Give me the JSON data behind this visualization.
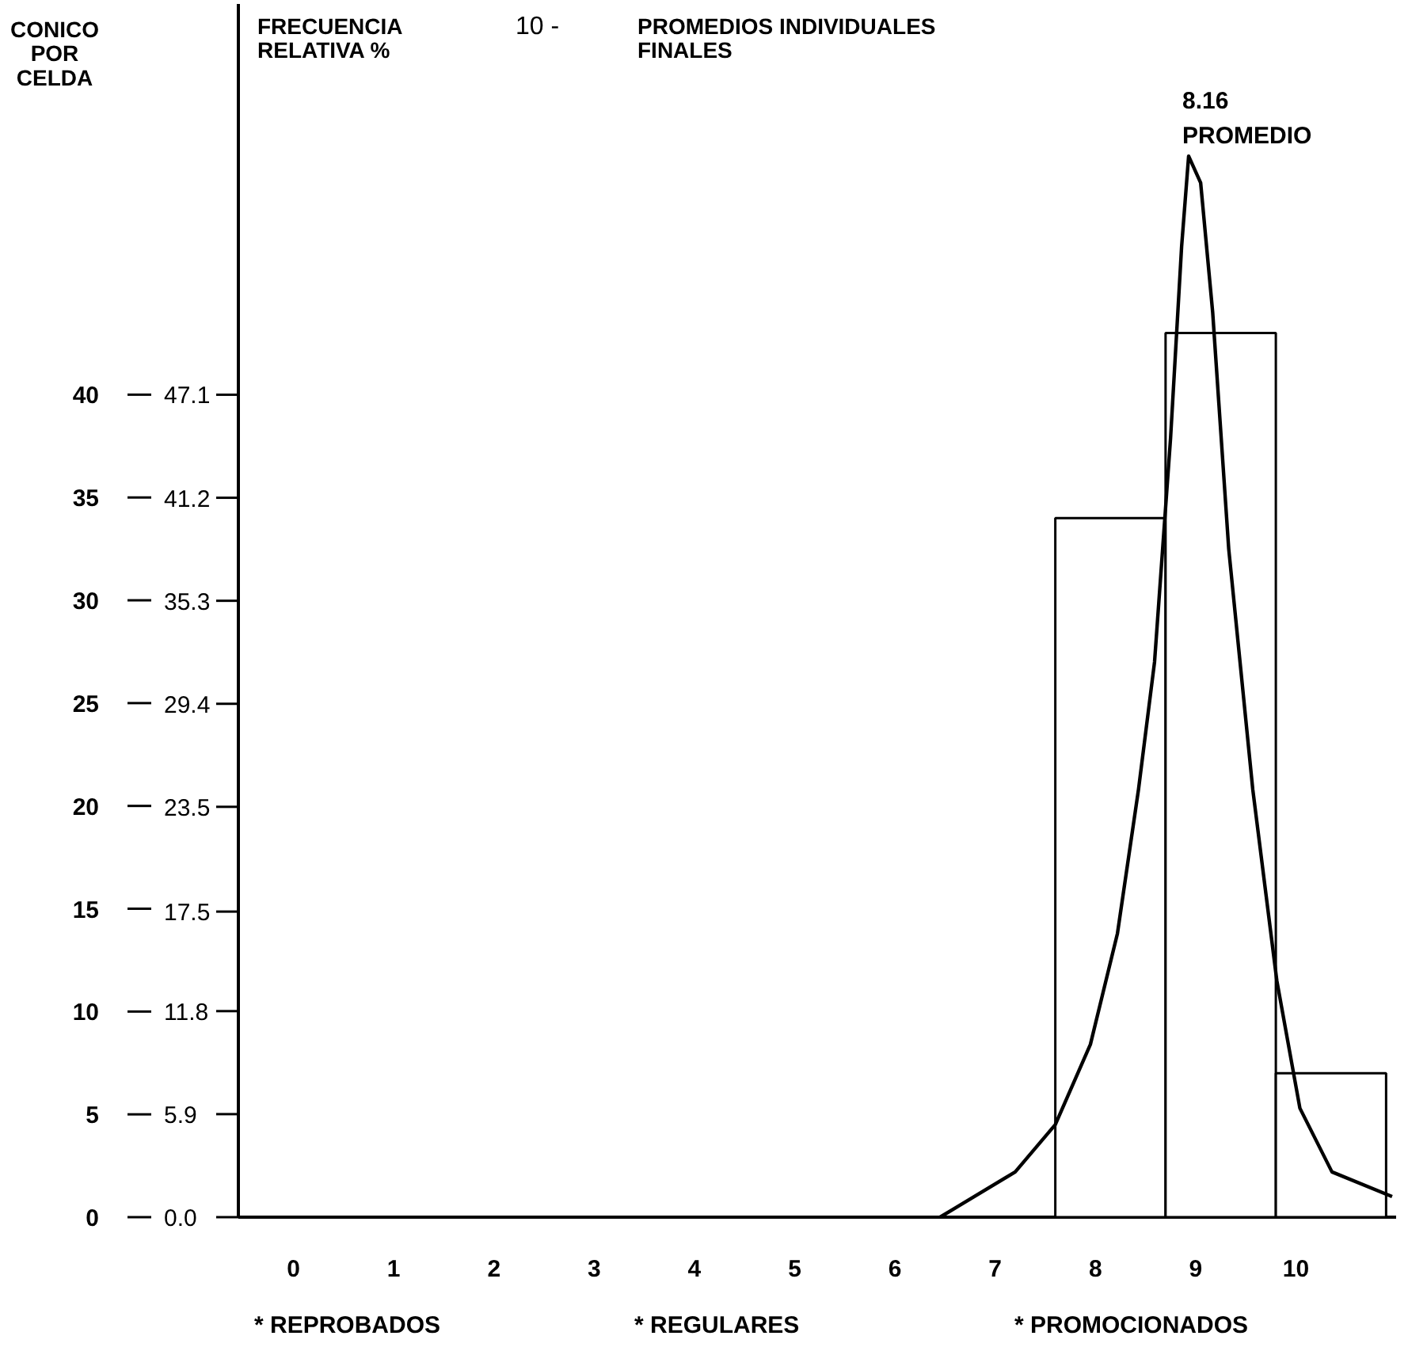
{
  "chart_data": {
    "type": "histogram",
    "title": "10 - PROMEDIOS INDIVIDUALES FINALES",
    "ylabel": "CONICO POR CELDA",
    "y2label": "FRECUENCIA RELATIVA %",
    "bins": [
      7.6,
      8.7,
      9.8,
      10.9
    ],
    "values": [
      34,
      43,
      7
    ],
    "color": "#ffffff",
    "series": [
      {
        "type": "line",
        "color": "#000000",
        "x": [
          6.45,
          7.2,
          7.6,
          7.95,
          8.22,
          8.43,
          8.59,
          8.75,
          8.86,
          8.93,
          9.05,
          9.17,
          9.33,
          9.57,
          9.81,
          10.04,
          10.36,
          10.96
        ],
        "values": [
          0,
          2.2,
          4.5,
          8.4,
          13.8,
          20.8,
          27,
          37.9,
          47.2,
          51.6,
          50.3,
          44,
          32.5,
          20.8,
          11.5,
          5.3,
          2.2,
          1.0
        ]
      }
    ],
    "xlim": [
      -0.55,
      11
    ],
    "xticks": [
      0,
      1,
      2,
      3,
      4,
      5,
      6,
      7,
      8,
      9,
      10
    ],
    "ylim": [
      0,
      58
    ],
    "yticks": [
      0,
      5,
      10,
      15,
      20,
      25,
      30,
      35,
      40
    ],
    "y2lim": [
      0,
      68.3
    ],
    "y2ticks": [
      {
        "value": 0,
        "label": "0.0"
      },
      5.9,
      11.8,
      17.5,
      23.5,
      29.4,
      35.3,
      41.2,
      47.1
    ],
    "annotations": [
      {
        "text": "8.16 PROMEDIO",
        "x": 8.93,
        "y": 51.6
      },
      "* REPROBADOS",
      "* REGULARES",
      "* PROMOCIONADOS"
    ],
    "grid": false
  }
}
